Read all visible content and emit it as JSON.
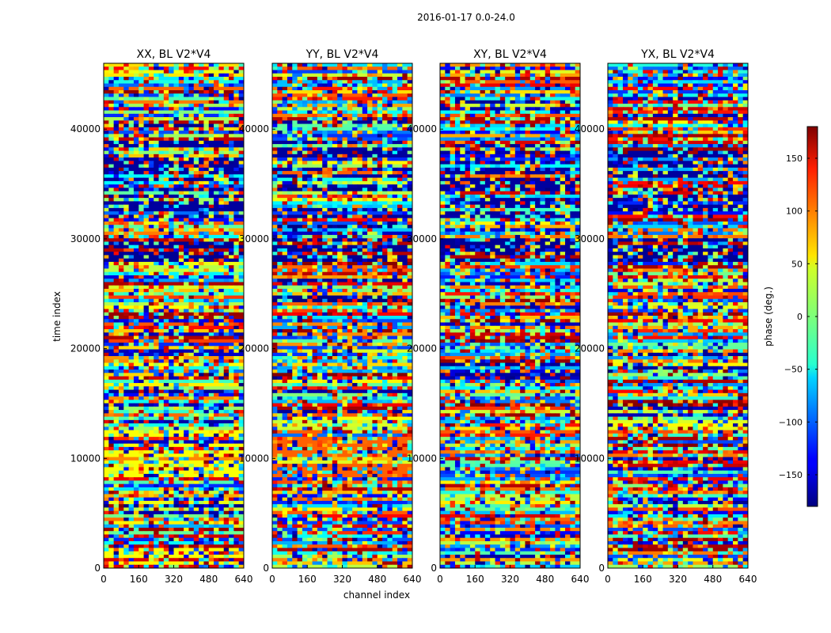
{
  "suptitle": "2016-01-17 0.0-24.0",
  "chart_data": {
    "type": "heatmap",
    "colormap": "jet",
    "panels": [
      {
        "title": "XX, BL V2*V4",
        "key": "xx"
      },
      {
        "title": "YY, BL V2*V4",
        "key": "yy"
      },
      {
        "title": "XY, BL V2*V4",
        "key": "xy"
      },
      {
        "title": "YX, BL V2*V4",
        "key": "yx"
      }
    ],
    "xlabel": "channel index",
    "ylabel": "time index",
    "xlim": [
      0,
      640
    ],
    "ylim": [
      0,
      46000
    ],
    "x_ticks": [
      0,
      160,
      320,
      480,
      640
    ],
    "y_ticks": [
      0,
      10000,
      20000,
      30000,
      40000
    ],
    "colorbar": {
      "label": "phase (deg.)",
      "range": [
        -180,
        180
      ],
      "ticks": [
        150,
        100,
        50,
        0,
        -50,
        -100,
        -150
      ],
      "tick_labels": [
        "150",
        "100",
        "50",
        "0",
        "−50",
        "−100",
        "−150"
      ]
    }
  }
}
